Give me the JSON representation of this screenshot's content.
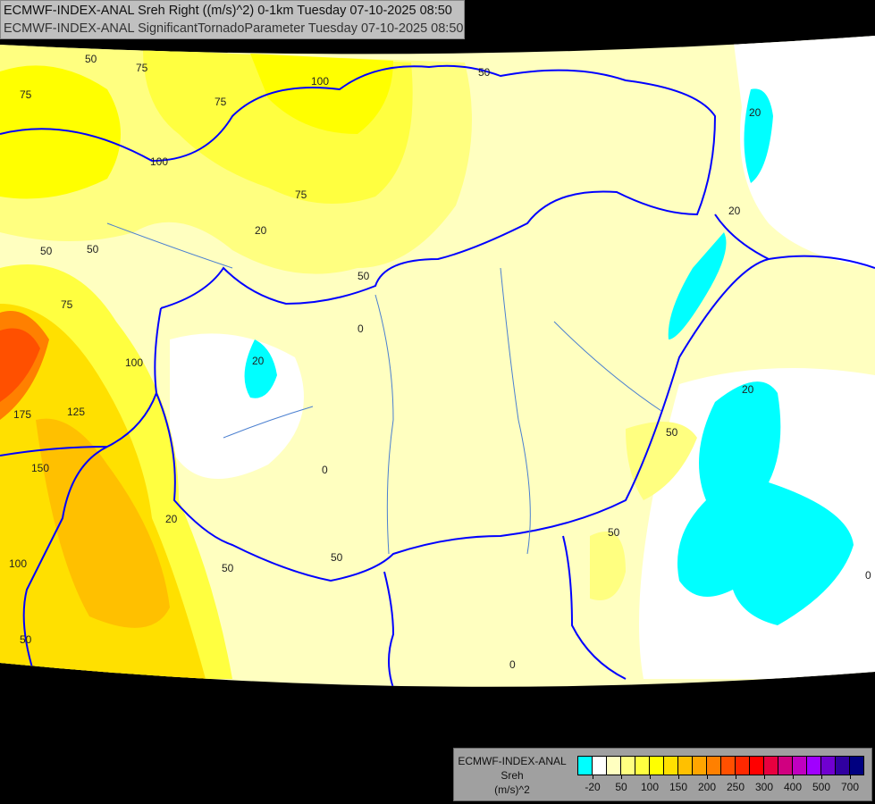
{
  "title": {
    "line1": "ECMWF-INDEX-ANAL Sreh Right ((m/s)^2) 0-1km Tuesday 07-10-2025 08:50",
    "line2": "ECMWF-INDEX-ANAL SignificantTornadoParameter Tuesday 07-10-2025 08:50"
  },
  "legend": {
    "line1": "ECMWF-INDEX-ANAL",
    "line2": "Sreh",
    "line3": "(m/s)^2",
    "colors": [
      "#00ffff",
      "#ffffff",
      "#ffffc0",
      "#ffff80",
      "#ffff40",
      "#ffff00",
      "#ffe000",
      "#ffc000",
      "#ffa500",
      "#ff8000",
      "#ff5000",
      "#ff2800",
      "#ff0000",
      "#e80040",
      "#d00080",
      "#c000c0",
      "#a000ff",
      "#7000d0",
      "#3000a0",
      "#000080"
    ],
    "ticks": [
      "-20",
      "50",
      "100",
      "150",
      "200",
      "250",
      "300",
      "400",
      "500",
      "700"
    ]
  },
  "map": {
    "border_color": "#0000ff",
    "river_color": "#4a7fd0",
    "contour_labels": [
      "50",
      "75",
      "100",
      "125",
      "150",
      "175",
      "0",
      "20"
    ]
  }
}
